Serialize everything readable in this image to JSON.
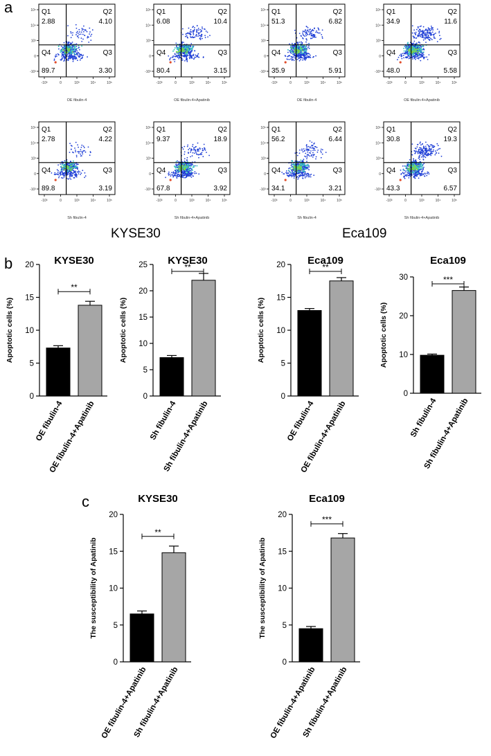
{
  "panel_labels": {
    "a": "a",
    "b": "b",
    "c": "c"
  },
  "group_labels": {
    "kyse": "KYSE30",
    "eca": "Eca109"
  },
  "quadrant_names": [
    "Q1",
    "Q2",
    "Q4",
    "Q3"
  ],
  "flow_plots": [
    {
      "caption": "OE fibulin-4",
      "density": 0.35,
      "q": [
        "2.88",
        "4.10",
        "89.7",
        "3.30"
      ]
    },
    {
      "caption": "OE fibulin-4+Apatinib",
      "density": 0.55,
      "q": [
        "6.08",
        "10.4",
        "80.4",
        "3.15"
      ]
    },
    {
      "caption": "OE fibulin-4",
      "density": 0.6,
      "q": [
        "51.3",
        "6.82",
        "35.9",
        "5.91"
      ]
    },
    {
      "caption": "OE fibulin-4+Apatinib",
      "density": 0.9,
      "q": [
        "34.9",
        "11.6",
        "48.0",
        "5.58"
      ]
    },
    {
      "caption": "Sh fibulin-4",
      "density": 0.3,
      "q": [
        "2.78",
        "4.22",
        "89.8",
        "3.19"
      ]
    },
    {
      "caption": "Sh fibulin-4+Apatinib",
      "density": 0.6,
      "q": [
        "9.37",
        "18.9",
        "67.8",
        "3.92"
      ]
    },
    {
      "caption": "Sh fibulin-4",
      "density": 0.6,
      "q": [
        "56.2",
        "6.44",
        "34.1",
        "3.21"
      ]
    },
    {
      "caption": "Sh fibulin-4+Apatinib",
      "density": 0.9,
      "q": [
        "30.8",
        "19.3",
        "43.3",
        "6.57"
      ]
    }
  ],
  "flow_axis_ticks": {
    "x": [
      "-10³",
      "0",
      "10³",
      "10⁴",
      "10⁵"
    ],
    "y": [
      "10⁵",
      "10⁴",
      "10³",
      "0",
      "-10³"
    ]
  },
  "chart_data": [
    {
      "type": "bar",
      "title": "KYSE30",
      "ylabel": "Apoptotic cells (%)",
      "categories": [
        "OE fibulin-4",
        "OE fibulin-4+Apatinib"
      ],
      "values": [
        7.3,
        13.8
      ],
      "errors": [
        0.35,
        0.6
      ],
      "ylim": [
        0,
        20
      ],
      "yticks": [
        0,
        5,
        10,
        15,
        20
      ],
      "colors": [
        "#000000",
        "#a6a6a6"
      ],
      "significance": "**"
    },
    {
      "type": "bar",
      "title": "KYSE30",
      "ylabel": "Apoptotic cells (%)",
      "categories": [
        "Sh fibulin-4",
        "Sh fibulin-4+Apatinib"
      ],
      "values": [
        7.3,
        22.0
      ],
      "errors": [
        0.4,
        1.3
      ],
      "ylim": [
        0,
        25
      ],
      "yticks": [
        0,
        5,
        10,
        15,
        20,
        25
      ],
      "colors": [
        "#000000",
        "#a6a6a6"
      ],
      "significance": "**"
    },
    {
      "type": "bar",
      "title": "Eca109",
      "ylabel": "Apoptotic cells (%)",
      "categories": [
        "OE fibulin-4",
        "OE fibulin-4+Apatinib"
      ],
      "values": [
        13.0,
        17.5
      ],
      "errors": [
        0.3,
        0.5
      ],
      "ylim": [
        0,
        20
      ],
      "yticks": [
        0,
        5,
        10,
        15,
        20
      ],
      "colors": [
        "#000000",
        "#a6a6a6"
      ],
      "significance": "**"
    },
    {
      "type": "bar",
      "title": "Eca109",
      "ylabel": "Apoptotic cells (%)",
      "categories": [
        "Sh fibulin-4",
        "Sh fibulin-4+Apatinib"
      ],
      "values": [
        9.8,
        26.5
      ],
      "errors": [
        0.3,
        0.9
      ],
      "ylim": [
        0,
        30
      ],
      "yticks": [
        0,
        10,
        20,
        30
      ],
      "colors": [
        "#000000",
        "#a6a6a6"
      ],
      "significance": "***"
    },
    {
      "type": "bar",
      "title": "KYSE30",
      "ylabel": "The susceptibility of Apatinib",
      "categories": [
        "OE fibulin-4+Apatinib",
        "Sh fibulin-4+Apatinib"
      ],
      "values": [
        6.5,
        14.8
      ],
      "errors": [
        0.4,
        0.9
      ],
      "ylim": [
        0,
        20
      ],
      "yticks": [
        0,
        5,
        10,
        15,
        20
      ],
      "colors": [
        "#000000",
        "#a6a6a6"
      ],
      "significance": "**"
    },
    {
      "type": "bar",
      "title": "Eca109",
      "ylabel": "The susceptibility of Apatinib",
      "categories": [
        "OE fibulin-4+Apatinib",
        "Sh fibulin-4+Apatinib"
      ],
      "values": [
        4.5,
        16.8
      ],
      "errors": [
        0.3,
        0.6
      ],
      "ylim": [
        0,
        20
      ],
      "yticks": [
        0,
        5,
        10,
        15,
        20
      ],
      "colors": [
        "#000000",
        "#a6a6a6"
      ],
      "significance": "***"
    }
  ]
}
